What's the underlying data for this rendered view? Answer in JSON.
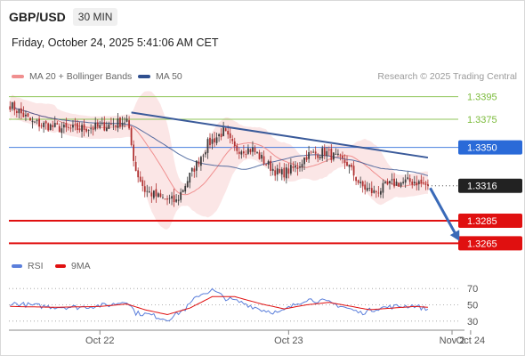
{
  "header": {
    "symbol": "GBP/USD",
    "timeframe": "30 MIN"
  },
  "datetime": "Friday, October 24, 2025 5:41:06 AM CET",
  "legend": {
    "ma20": {
      "label": "MA 20 + Bollinger Bands",
      "color": "#f08f8f"
    },
    "ma50": {
      "label": "MA 50",
      "color": "#2f4f8f"
    }
  },
  "copyright": "Research © 2025 Trading Central",
  "rsi_legend": {
    "rsi": {
      "label": "RSI",
      "color": "#5b7fdb"
    },
    "ma9": {
      "label": "9MA",
      "color": "#e01010"
    }
  },
  "chart_data": {
    "type": "candlestick",
    "x_ticks": [
      "Oct 22",
      "Oct 23",
      "Oct 24",
      "Nov 2"
    ],
    "ylim": [
      1.3255,
      1.3405
    ],
    "last_price": {
      "label": "1.3316",
      "value": 1.3316,
      "color": "#222222"
    },
    "levels": [
      {
        "label": "1.3395",
        "value": 1.3395,
        "color": "#7cbb3c",
        "role": "resistance"
      },
      {
        "label": "1.3375",
        "value": 1.3375,
        "color": "#7cbb3c",
        "role": "resistance"
      },
      {
        "label": "1.3350",
        "value": 1.335,
        "color": "#2a6ad8",
        "role": "pivot"
      },
      {
        "label": "1.3285",
        "value": 1.3285,
        "color": "#e01010",
        "role": "support"
      },
      {
        "label": "1.3265",
        "value": 1.3265,
        "color": "#e01010",
        "role": "support"
      }
    ],
    "trendline": {
      "from": {
        "bar": 54,
        "price": 1.3381
      },
      "to": {
        "bar": 186,
        "price": 1.3341
      },
      "color": "#3a5a9a"
    },
    "forecast_arrow": {
      "from": {
        "bar": 187,
        "price": 1.3314
      },
      "to": {
        "bar": 200,
        "price": 1.3267
      },
      "color": "#3a6ab8"
    },
    "candles": {
      "close_anchors": [
        [
          0,
          1.3388
        ],
        [
          10,
          1.3372
        ],
        [
          25,
          1.3366
        ],
        [
          40,
          1.3368
        ],
        [
          52,
          1.3374
        ],
        [
          56,
          1.333
        ],
        [
          60,
          1.3312
        ],
        [
          67,
          1.3305
        ],
        [
          74,
          1.3302
        ],
        [
          80,
          1.3325
        ],
        [
          88,
          1.3353
        ],
        [
          95,
          1.3364
        ],
        [
          100,
          1.3349
        ],
        [
          108,
          1.3348
        ],
        [
          114,
          1.3336
        ],
        [
          120,
          1.3326
        ],
        [
          128,
          1.3333
        ],
        [
          132,
          1.3343
        ],
        [
          140,
          1.3346
        ],
        [
          150,
          1.3336
        ],
        [
          156,
          1.3316
        ],
        [
          162,
          1.331
        ],
        [
          170,
          1.3318
        ],
        [
          180,
          1.332
        ],
        [
          186,
          1.3316
        ]
      ],
      "count": 187
    },
    "rsi": {
      "ylim": [
        20,
        80
      ],
      "ticks": [
        70,
        50,
        30
      ],
      "rsi_anchors": [
        [
          0,
          52
        ],
        [
          15,
          48
        ],
        [
          30,
          47
        ],
        [
          45,
          50
        ],
        [
          52,
          55
        ],
        [
          56,
          40
        ],
        [
          62,
          38
        ],
        [
          70,
          32
        ],
        [
          78,
          45
        ],
        [
          84,
          62
        ],
        [
          90,
          68
        ],
        [
          96,
          58
        ],
        [
          104,
          52
        ],
        [
          112,
          44
        ],
        [
          120,
          40
        ],
        [
          128,
          52
        ],
        [
          132,
          57
        ],
        [
          140,
          54
        ],
        [
          148,
          48
        ],
        [
          156,
          40
        ],
        [
          164,
          46
        ],
        [
          172,
          48
        ],
        [
          180,
          49
        ],
        [
          186,
          44
        ]
      ],
      "ma9_anchors": [
        [
          0,
          48
        ],
        [
          20,
          47
        ],
        [
          40,
          48
        ],
        [
          52,
          51
        ],
        [
          60,
          44
        ],
        [
          70,
          38
        ],
        [
          80,
          46
        ],
        [
          90,
          60
        ],
        [
          100,
          60
        ],
        [
          112,
          51
        ],
        [
          122,
          45
        ],
        [
          132,
          50
        ],
        [
          142,
          53
        ],
        [
          152,
          48
        ],
        [
          160,
          44
        ],
        [
          170,
          46
        ],
        [
          180,
          48
        ],
        [
          186,
          47
        ]
      ]
    }
  }
}
